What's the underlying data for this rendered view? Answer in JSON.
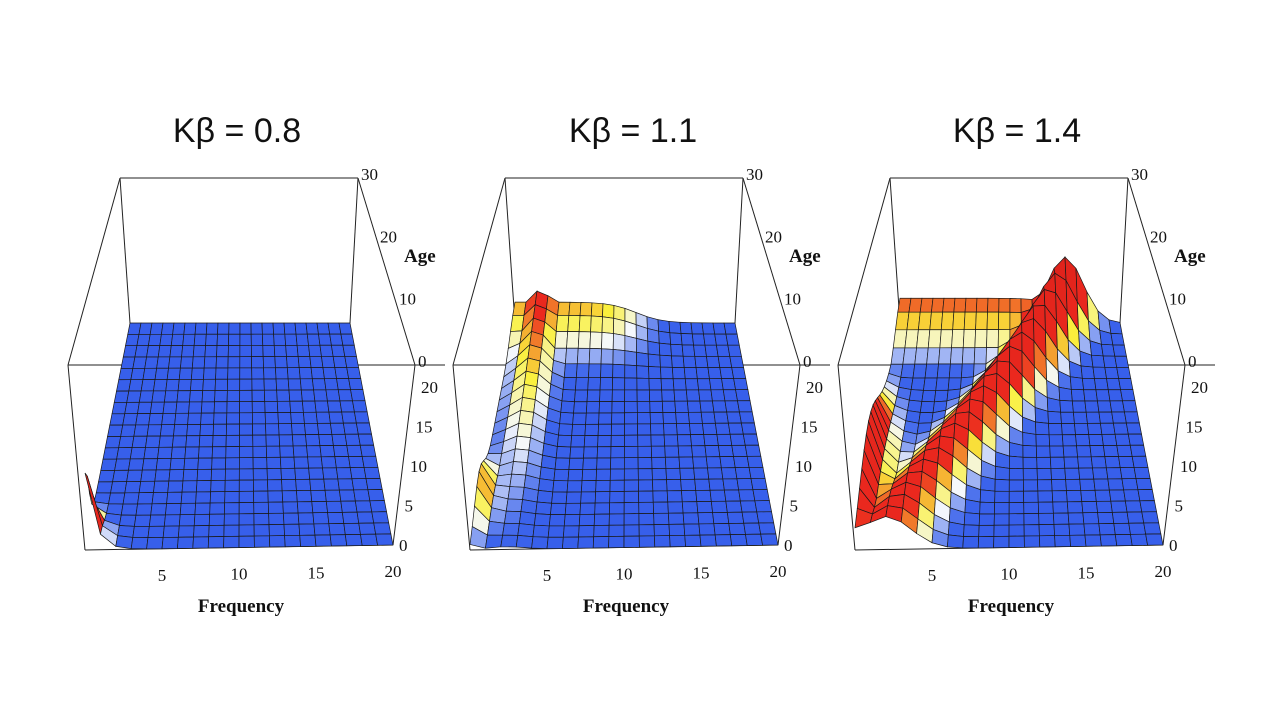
{
  "chart_data": [
    {
      "type": "surface",
      "title": "Kβ = 0.8",
      "xlabel": "Frequency",
      "ylabel": "Age",
      "xlim": [
        0,
        20
      ],
      "ylim": [
        0,
        20
      ],
      "zlim": [
        0,
        30
      ],
      "x_ticks": [
        "5",
        "10",
        "15",
        "20"
      ],
      "y_ticks": [
        "0",
        "5",
        "10",
        "15",
        "20"
      ],
      "z_ticks": [
        "0",
        "10",
        "20",
        "30"
      ],
      "features": [
        {
          "kind": "spike",
          "frequency": 0,
          "age": 0,
          "height": 14
        }
      ]
    },
    {
      "type": "surface",
      "title": "Kβ = 1.1",
      "xlabel": "Frequency",
      "ylabel": "Age",
      "xlim": [
        0,
        20
      ],
      "ylim": [
        0,
        20
      ],
      "zlim": [
        0,
        30
      ],
      "x_ticks": [
        "5",
        "10",
        "15",
        "20"
      ],
      "y_ticks": [
        "0",
        "5",
        "10",
        "15",
        "20"
      ],
      "z_ticks": [
        "0",
        "10",
        "20",
        "30"
      ],
      "features": [
        {
          "kind": "spike",
          "frequency": 0,
          "age": 4,
          "height": 6
        },
        {
          "kind": "ridge",
          "frequency": 2,
          "age_from": 0,
          "age_to": 20,
          "height_to": 6
        },
        {
          "kind": "plateau",
          "frequency_from": 2,
          "frequency_to": 10,
          "age": 20,
          "height": 4
        }
      ]
    },
    {
      "type": "surface",
      "title": "Kβ = 1.4",
      "xlabel": "Frequency",
      "ylabel": "Age",
      "xlim": [
        0,
        20
      ],
      "ylim": [
        0,
        20
      ],
      "zlim": [
        0,
        30
      ],
      "x_ticks": [
        "5",
        "10",
        "15",
        "20"
      ],
      "y_ticks": [
        "0",
        "5",
        "10",
        "15",
        "20"
      ],
      "z_ticks": [
        "0",
        "10",
        "20",
        "30"
      ],
      "features": [
        {
          "kind": "spike",
          "frequency": 0,
          "age": 6,
          "height": 11
        },
        {
          "kind": "ridge",
          "frequency_from": 2,
          "frequency_to": 15,
          "age_from": 0,
          "age_to": 20,
          "height": 7
        },
        {
          "kind": "peak",
          "frequency": 15,
          "age": 20,
          "height": 14
        }
      ]
    }
  ]
}
